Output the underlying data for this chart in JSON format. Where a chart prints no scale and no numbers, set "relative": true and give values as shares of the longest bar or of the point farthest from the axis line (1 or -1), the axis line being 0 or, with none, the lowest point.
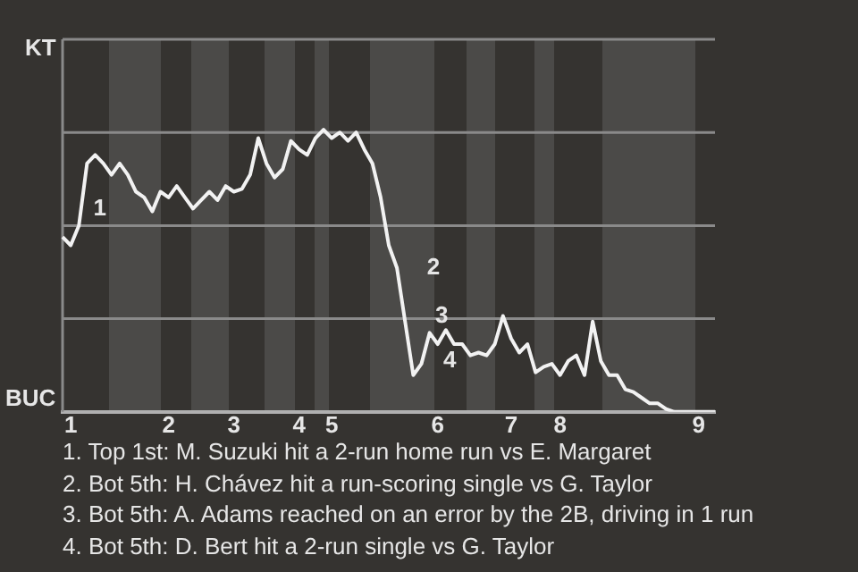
{
  "chart_data": {
    "type": "line",
    "relative": true,
    "color": "#f2f2f2",
    "marker": "none",
    "line_style": "solid",
    "legend": false,
    "ref_lines": [
      {
        "axis": "y",
        "value": 0.33,
        "color": "#8a8a8a"
      },
      {
        "axis": "y",
        "value": 0.66,
        "color": "#8a8a8a"
      },
      {
        "axis": "y",
        "value": 0.99,
        "color": "#8a8a8a"
      },
      {
        "axis": "y",
        "value": 1.32,
        "color": "#8a8a8a"
      }
    ],
    "categories": [
      null,
      "1",
      null,
      null,
      null,
      null,
      null,
      null,
      null,
      null,
      null,
      null,
      null,
      "2",
      null,
      null,
      null,
      null,
      null,
      null,
      null,
      "3",
      null,
      null,
      null,
      null,
      null,
      null,
      null,
      "4",
      null,
      null,
      null,
      "5",
      null,
      null,
      null,
      null,
      null,
      null,
      null,
      null,
      null,
      null,
      null,
      null,
      "6",
      null,
      null,
      null,
      null,
      null,
      null,
      null,
      null,
      "7",
      null,
      null,
      null,
      null,
      null,
      "8",
      null,
      null,
      null,
      null,
      null,
      null,
      null,
      null,
      null,
      null,
      null,
      null,
      null,
      null,
      null,
      null,
      "9",
      null,
      null
    ],
    "values": [
      0.62,
      0.59,
      0.66,
      0.88,
      0.91,
      0.88,
      0.84,
      0.88,
      0.84,
      0.78,
      0.76,
      0.71,
      0.78,
      0.76,
      0.8,
      0.76,
      0.72,
      0.75,
      0.78,
      0.75,
      0.8,
      0.78,
      0.79,
      0.84,
      0.97,
      0.88,
      0.83,
      0.86,
      0.96,
      0.93,
      0.91,
      0.97,
      1,
      0.97,
      0.99,
      0.96,
      0.99,
      0.93,
      0.88,
      0.76,
      0.59,
      0.51,
      0.32,
      0.13,
      0.17,
      0.28,
      0.24,
      0.29,
      0.24,
      0.24,
      0.2,
      0.21,
      0.2,
      0.24,
      0.34,
      0.26,
      0.21,
      0.24,
      0.14,
      0.16,
      0.17,
      0.13,
      0.18,
      0.2,
      0.13,
      0.32,
      0.18,
      0.13,
      0.13,
      0.08,
      0.07,
      0.05,
      0.03,
      0.03,
      0.01,
      0,
      0,
      0,
      0,
      0,
      0
    ],
    "annotations": [
      "KT",
      "BUC",
      "1",
      "2",
      "3",
      "4",
      "1. Top 1st: M. Suzuki hit a 2-run home run vs E. Margaret",
      "2. Bot 5th: H. Chávez hit a run-scoring single vs G. Taylor",
      "3. Bot 5th: A. Adams reached on an error by the 2B, driving in 1 run",
      "4. Bot 5th: D. Bert hit a 2-run single vs G. Taylor"
    ]
  }
}
